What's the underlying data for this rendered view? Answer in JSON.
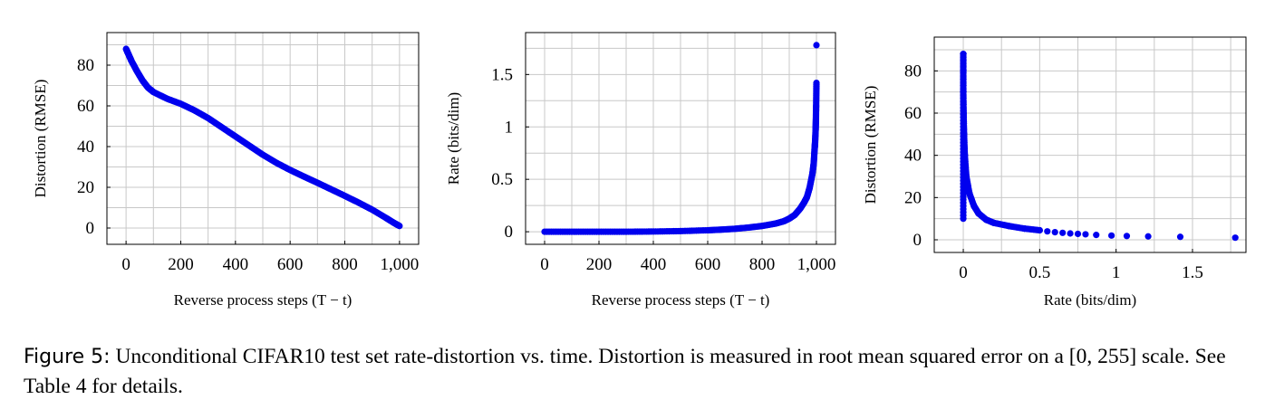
{
  "chart_data": [
    {
      "type": "scatter",
      "xlabel": "Reverse process steps (T − t)",
      "ylabel": "Distortion (RMSE)",
      "xlim": [
        -70,
        1070
      ],
      "ylim": [
        -8,
        96
      ],
      "xticks": [
        0,
        200,
        400,
        600,
        800,
        1000
      ],
      "xtick_labels": [
        "0",
        "200",
        "400",
        "600",
        "800",
        "1,000"
      ],
      "yticks": [
        0,
        20,
        40,
        60,
        80
      ],
      "ytick_labels": [
        "0",
        "20",
        "40",
        "60",
        "80"
      ],
      "grid": true,
      "color": "#0000ee",
      "series": [
        {
          "x": [
            0,
            10,
            20,
            40,
            60,
            80,
            100,
            150,
            200,
            250,
            300,
            350,
            400,
            450,
            500,
            550,
            600,
            650,
            700,
            750,
            800,
            850,
            900,
            950,
            980,
            1000
          ],
          "y": [
            88,
            85,
            82,
            77,
            72.5,
            69,
            66.8,
            63.5,
            61,
            57.8,
            54,
            49.5,
            45,
            40.5,
            36,
            32,
            28.5,
            25.3,
            22.2,
            19,
            15.8,
            12.5,
            9,
            5,
            2.5,
            1
          ]
        }
      ]
    },
    {
      "type": "scatter",
      "xlabel": "Reverse process steps (T − t)",
      "ylabel": "Rate (bits/dim)",
      "xlim": [
        -70,
        1070
      ],
      "ylim": [
        -0.12,
        1.9
      ],
      "xticks": [
        0,
        200,
        400,
        600,
        800,
        1000
      ],
      "xtick_labels": [
        "0",
        "200",
        "400",
        "600",
        "800",
        "1,000"
      ],
      "yticks": [
        0,
        0.5,
        1,
        1.5
      ],
      "ytick_labels": [
        "0",
        "0.5",
        "1",
        "1.5"
      ],
      "grid": true,
      "color": "#0000ee",
      "series": [
        {
          "x": [
            0,
            100,
            200,
            300,
            400,
            500,
            600,
            650,
            700,
            750,
            800,
            850,
            880,
            900,
            920,
            940,
            955,
            965,
            975,
            985,
            990,
            993,
            995,
            997,
            998,
            999,
            1000
          ],
          "y": [
            0,
            0,
            0,
            0,
            0.002,
            0.006,
            0.014,
            0.02,
            0.028,
            0.04,
            0.055,
            0.078,
            0.1,
            0.125,
            0.16,
            0.22,
            0.28,
            0.33,
            0.42,
            0.55,
            0.65,
            0.78,
            0.85,
            0.97,
            1.07,
            1.21,
            1.42
          ],
          "extra_points": [
            [
              1000,
              1.78
            ]
          ]
        }
      ]
    },
    {
      "type": "scatter",
      "xlabel": "Rate (bits/dim)",
      "ylabel": "Distortion (RMSE)",
      "xlim": [
        -0.19,
        1.85
      ],
      "ylim": [
        -6,
        96
      ],
      "xticks": [
        0,
        0.5,
        1,
        1.5
      ],
      "xtick_labels": [
        "0",
        "0.5",
        "1",
        "1.5"
      ],
      "yticks": [
        0,
        20,
        40,
        60,
        80
      ],
      "ytick_labels": [
        "0",
        "20",
        "40",
        "60",
        "80"
      ],
      "grid": true,
      "color": "#0000ee",
      "series": [
        {
          "x": [
            0,
            0,
            0,
            0.002,
            0.005,
            0.01,
            0.02,
            0.04,
            0.07,
            0.1,
            0.15,
            0.2,
            0.3,
            0.4,
            0.5,
            0.55,
            0.6,
            0.65,
            0.7,
            0.75,
            0.8,
            0.87,
            0.97,
            1.07,
            1.21,
            1.42,
            1.78
          ],
          "y": [
            88,
            80,
            70,
            60,
            50,
            40,
            30,
            22,
            16,
            12.5,
            9.5,
            8,
            6.5,
            5.3,
            4.5,
            4,
            3.6,
            3.3,
            3,
            2.8,
            2.6,
            2.3,
            2,
            1.8,
            1.6,
            1.4,
            1
          ]
        }
      ]
    }
  ],
  "caption": {
    "label": "Figure 5:",
    "text": "Unconditional CIFAR10 test set rate-distortion vs. time. Distortion is measured in root mean squared error on a [0, 255] scale. See Table 4 for details."
  }
}
